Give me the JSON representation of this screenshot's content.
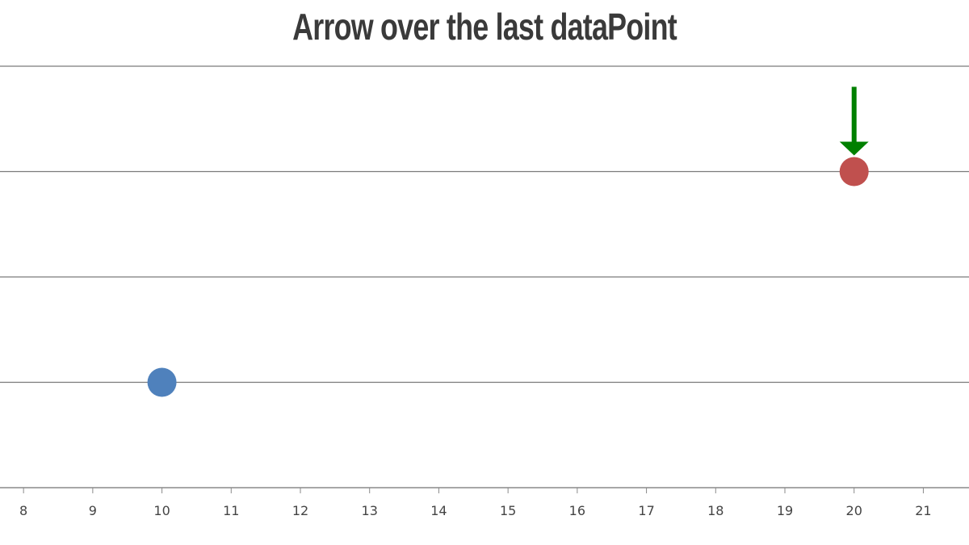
{
  "chart_data": {
    "type": "scatter",
    "title": "Arrow over the last dataPoint",
    "xlabel": "",
    "ylabel": "",
    "xlim": [
      7.66,
      21.66
    ],
    "ylim": [
      0,
      40
    ],
    "x_ticks": [
      8,
      9,
      10,
      11,
      12,
      13,
      14,
      15,
      16,
      17,
      18,
      19,
      20,
      21
    ],
    "y_gridlines": [
      10,
      20,
      30,
      40
    ],
    "grid": true,
    "points": [
      {
        "x": 10,
        "y": 10,
        "color": "#4f81bc"
      },
      {
        "x": 20,
        "y": 30,
        "color": "#c0504e"
      }
    ],
    "annotation": {
      "type": "arrow-down",
      "target_point": 1,
      "color": "#008000"
    }
  }
}
